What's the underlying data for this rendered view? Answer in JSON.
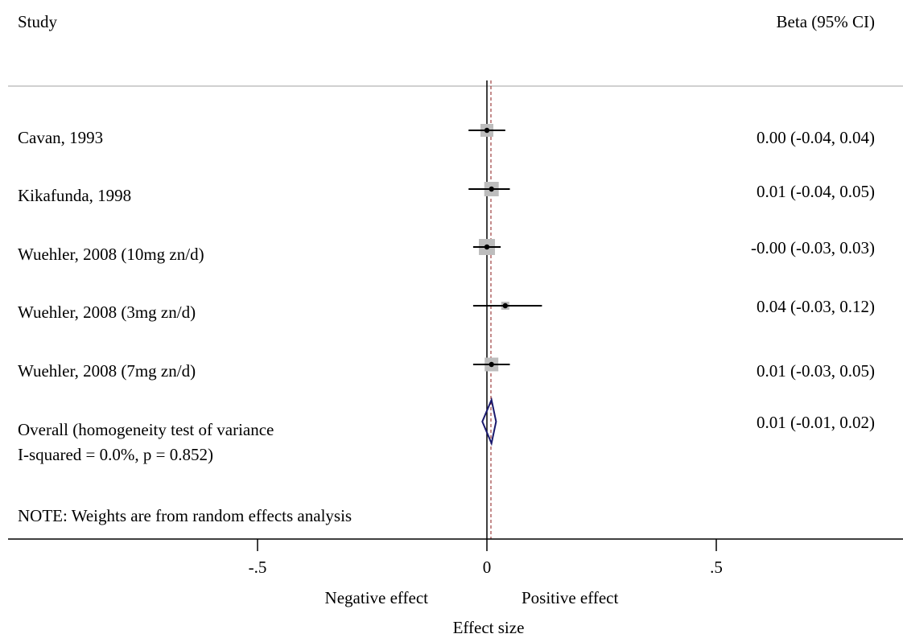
{
  "chart_data": {
    "type": "forest",
    "headers": {
      "study": "Study",
      "estimate": "Beta (95% CI)"
    },
    "studies": [
      {
        "label": "Cavan, 1993",
        "beta": 0.0,
        "ci_low": -0.04,
        "ci_high": 0.04,
        "text": "0.00 (-0.04, 0.04)"
      },
      {
        "label": "Kikafunda, 1998",
        "beta": 0.01,
        "ci_low": -0.04,
        "ci_high": 0.05,
        "text": "0.01 (-0.04, 0.05)"
      },
      {
        "label": "Wuehler, 2008 (10mg zn/d)",
        "beta": -0.0,
        "ci_low": -0.03,
        "ci_high": 0.03,
        "text": "-0.00 (-0.03, 0.03)"
      },
      {
        "label": "Wuehler, 2008 (3mg zn/d)",
        "beta": 0.04,
        "ci_low": -0.03,
        "ci_high": 0.12,
        "text": "0.04 (-0.03, 0.12)"
      },
      {
        "label": "Wuehler, 2008 (7mg zn/d)",
        "beta": 0.01,
        "ci_low": -0.03,
        "ci_high": 0.05,
        "text": "0.01 (-0.03, 0.05)"
      }
    ],
    "overall": {
      "label_line1": "Overall  (homogeneity test of variance",
      "label_line2": "I-squared = 0.0%, p = 0.852)",
      "beta": 0.01,
      "ci_low": -0.01,
      "ci_high": 0.02,
      "text": "0.01 (-0.01, 0.02)"
    },
    "note": "NOTE: Weights are from random effects analysis",
    "x_ticks": [
      {
        "value": -0.5,
        "label": "-.5"
      },
      {
        "value": 0,
        "label": "0"
      },
      {
        "value": 0.5,
        "label": ".5"
      }
    ],
    "direction_labels": {
      "negative": "Negative effect",
      "positive": "Positive effect"
    },
    "xlabel": "Effect size",
    "colors": {
      "diamond": "#1a1a6e",
      "overall_line": "#8b1a1a",
      "box": "#bdbdbd",
      "rule": "#c0c0c0"
    }
  }
}
